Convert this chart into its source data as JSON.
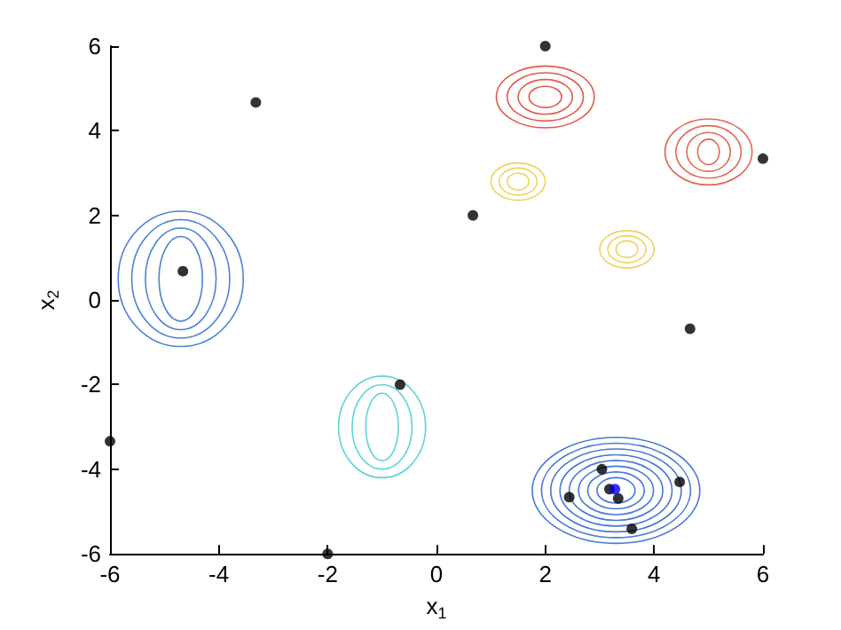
{
  "chart_data": {
    "type": "scatter",
    "xlabel": "x$_{1}$",
    "ylabel": "x$_{2}$",
    "xlim": [
      -6,
      6
    ],
    "ylim": [
      -6,
      6
    ],
    "xticks": [
      -6,
      -4,
      -2,
      0,
      2,
      4,
      6
    ],
    "yticks": [
      -6,
      -4,
      -2,
      0,
      2,
      4,
      6
    ],
    "grid": false,
    "marker": "circle",
    "series": [
      {
        "color": "#000000",
        "x": [
          2.0,
          -3.32,
          6.0,
          0.67,
          -4.66,
          4.66,
          -0.67,
          -6.0,
          3.04,
          2.44,
          3.18,
          3.34,
          4.47,
          3.59,
          -2.0
        ],
        "values": [
          6.0,
          4.67,
          3.34,
          2.0,
          0.68,
          -0.68,
          -2.0,
          -3.34,
          -4.0,
          -4.66,
          -4.47,
          -4.69,
          -4.3,
          -5.41,
          -6.0
        ]
      },
      {
        "color": "#0000ff",
        "x": [
          3.28
        ],
        "values": [
          -4.47
        ]
      }
    ]
  }
}
